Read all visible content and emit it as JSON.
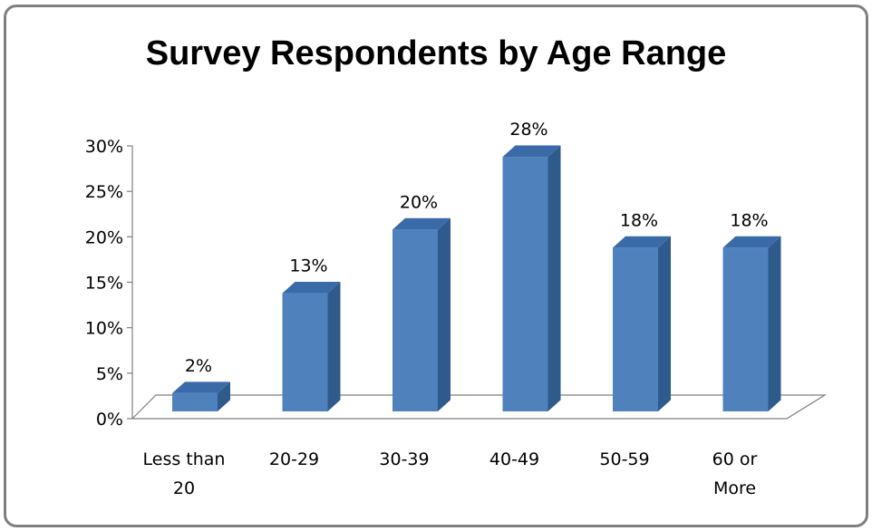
{
  "chart_data": {
    "type": "bar",
    "title": "Survey Respondents by Age Range",
    "categories": [
      "Less than 20",
      "20-29",
      "30-39",
      "40-49",
      "50-59",
      "60 or More"
    ],
    "category_lines": [
      [
        "Less than",
        "20"
      ],
      [
        "20-29"
      ],
      [
        "30-39"
      ],
      [
        "40-49"
      ],
      [
        "50-59"
      ],
      [
        "60 or",
        "More"
      ]
    ],
    "values": [
      2,
      13,
      20,
      28,
      18,
      18
    ],
    "data_labels": [
      "2%",
      "13%",
      "20%",
      "28%",
      "18%",
      "18%"
    ],
    "ylim": [
      0,
      30
    ],
    "yticks": [
      0,
      5,
      10,
      15,
      20,
      25,
      30
    ],
    "ytick_labels": [
      "0%",
      "5%",
      "10%",
      "15%",
      "20%",
      "25%",
      "30%"
    ],
    "xlabel": "",
    "ylabel": "",
    "legend": "none",
    "grid": false,
    "style": "3d-column",
    "colors": {
      "front": "#4f81bd",
      "side": "#2e5a8c",
      "top": "#3a6aa8",
      "axis": "#7f7f7f"
    }
  }
}
